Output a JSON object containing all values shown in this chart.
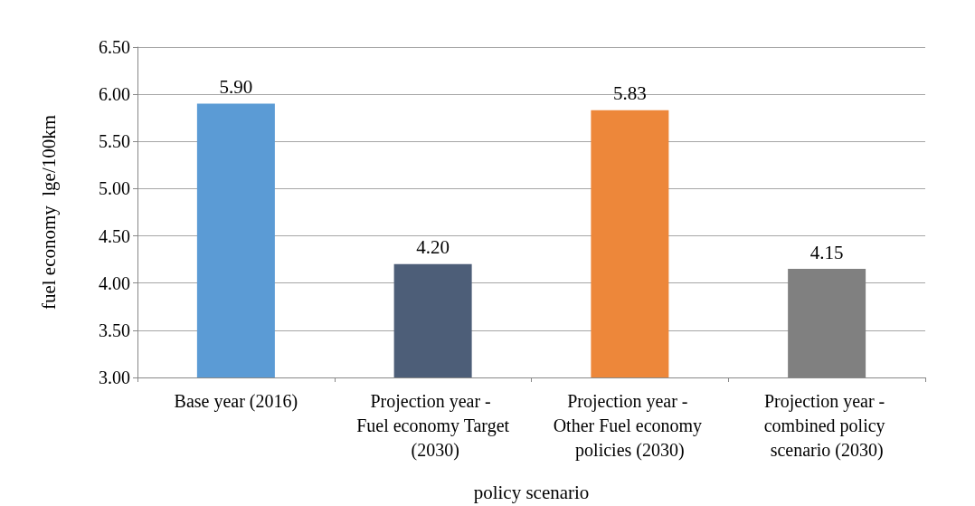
{
  "chart_data": {
    "type": "bar",
    "xlabel": "policy scenario",
    "ylabel": "fuel economy  lge/100km",
    "categories": [
      "Base year (2016)",
      "Projection year - Fuel economy Target (2030)",
      "Projection year - Other Fuel economy policies (2030)",
      "Projection year - combined policy scenario (2030)"
    ],
    "values": [
      5.9,
      4.2,
      5.83,
      4.15
    ],
    "value_labels": [
      "5.90",
      "4.20",
      "5.83",
      "4.15"
    ],
    "colors": [
      "#5b9bd5",
      "#4d5e78",
      "#ed873a",
      "#808080"
    ],
    "ylim": [
      3,
      6.5
    ],
    "yticks": [
      {
        "value": 3,
        "label": "3.00"
      },
      {
        "value": 3.5,
        "label": "3.50"
      },
      {
        "value": 4,
        "label": "4.00"
      },
      {
        "value": 4.5,
        "label": "4.50"
      },
      {
        "value": 5,
        "label": "5.00"
      },
      {
        "value": 5.5,
        "label": "5.50"
      },
      {
        "value": 6,
        "label": "6.00"
      },
      {
        "value": 6.5,
        "label": "6.50"
      }
    ],
    "grid": "y"
  }
}
